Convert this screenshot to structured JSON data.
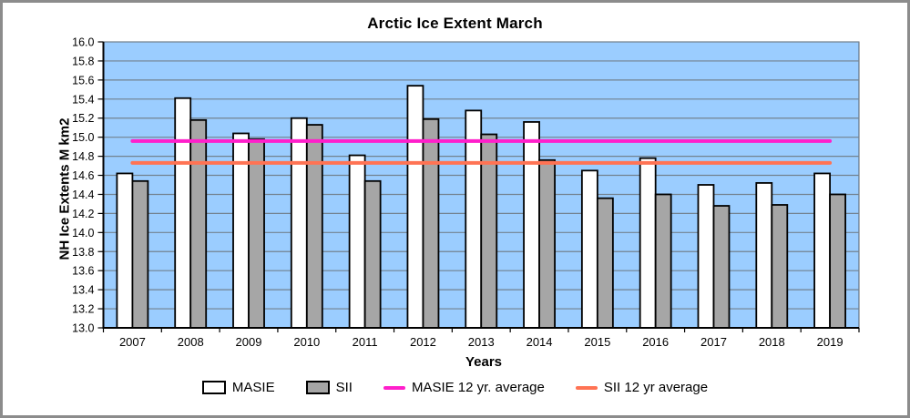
{
  "chart_data": {
    "type": "bar",
    "title": "Arctic Ice Extent March",
    "xlabel": "Years",
    "ylabel": "NH Ice Extents M km2",
    "ylim": [
      13.0,
      16.0
    ],
    "ytick_step": 0.2,
    "grid": true,
    "legend_position": "bottom",
    "plot_bg_color": "#9BCDFF",
    "gridline_color": "#73828f",
    "categories": [
      "2007",
      "2008",
      "2009",
      "2010",
      "2011",
      "2012",
      "2013",
      "2014",
      "2015",
      "2016",
      "2017",
      "2018",
      "2019"
    ],
    "series": [
      {
        "name": "MASIE",
        "kind": "bar",
        "color": "#FFFFFF",
        "values": [
          14.62,
          15.41,
          15.04,
          15.2,
          14.81,
          15.54,
          15.28,
          15.16,
          14.65,
          14.78,
          14.5,
          14.52,
          14.62
        ]
      },
      {
        "name": "SII",
        "kind": "bar",
        "color": "#A6A6A6",
        "values": [
          14.54,
          15.18,
          14.98,
          15.13,
          14.54,
          15.19,
          15.03,
          14.76,
          14.36,
          14.4,
          14.28,
          14.29,
          14.4
        ]
      },
      {
        "name": "MASIE 12 yr. average",
        "kind": "line",
        "color": "#FF1FCB",
        "value": 14.96
      },
      {
        "name": "SII 12 yr average",
        "kind": "line",
        "color": "#FF7354",
        "value": 14.73
      }
    ]
  }
}
